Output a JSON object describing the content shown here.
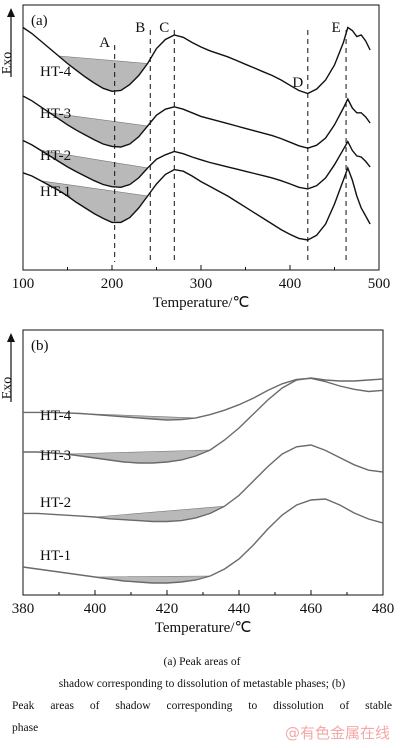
{
  "chart_data": [
    {
      "panel_label": "(a)",
      "type": "line",
      "xlabel": "Temperature/℃",
      "ylabel": "Exo",
      "xlim": [
        100,
        500
      ],
      "xticks": [
        100,
        200,
        300,
        400,
        500
      ],
      "grid": false,
      "legend": "none",
      "series": [
        {
          "name": "HT-4",
          "x": [
            100,
            110,
            120,
            130,
            140,
            150,
            160,
            170,
            180,
            190,
            200,
            210,
            220,
            230,
            240,
            250,
            260,
            270,
            280,
            290,
            300,
            310,
            320,
            330,
            340,
            350,
            360,
            370,
            380,
            390,
            400,
            410,
            420,
            430,
            440,
            450,
            460,
            465,
            470,
            475,
            480,
            485,
            490
          ],
          "y": [
            0.9,
            0.82,
            0.72,
            0.62,
            0.52,
            0.42,
            0.33,
            0.24,
            0.16,
            0.09,
            0.05,
            0.06,
            0.14,
            0.26,
            0.42,
            0.62,
            0.74,
            0.8,
            0.77,
            0.7,
            0.64,
            0.59,
            0.55,
            0.51,
            0.46,
            0.41,
            0.36,
            0.31,
            0.26,
            0.2,
            0.13,
            0.06,
            0.02,
            0.08,
            0.2,
            0.4,
            0.7,
            0.9,
            0.86,
            0.78,
            0.8,
            0.72,
            0.6
          ]
        },
        {
          "name": "HT-3",
          "x": [
            100,
            110,
            120,
            130,
            140,
            150,
            160,
            170,
            180,
            190,
            200,
            210,
            220,
            230,
            240,
            250,
            260,
            270,
            280,
            290,
            300,
            310,
            320,
            330,
            340,
            350,
            360,
            370,
            380,
            390,
            400,
            410,
            420,
            430,
            440,
            450,
            460,
            465,
            470,
            475,
            480,
            485,
            490
          ],
          "y": [
            0.9,
            0.82,
            0.72,
            0.62,
            0.52,
            0.42,
            0.33,
            0.25,
            0.17,
            0.1,
            0.06,
            0.05,
            0.1,
            0.22,
            0.4,
            0.58,
            0.68,
            0.72,
            0.68,
            0.62,
            0.56,
            0.52,
            0.48,
            0.44,
            0.4,
            0.36,
            0.32,
            0.28,
            0.24,
            0.19,
            0.13,
            0.07,
            0.03,
            0.08,
            0.2,
            0.42,
            0.7,
            0.85,
            0.7,
            0.62,
            0.62,
            0.55,
            0.45
          ]
        },
        {
          "name": "HT-2",
          "x": [
            100,
            110,
            120,
            130,
            140,
            150,
            160,
            170,
            180,
            190,
            200,
            210,
            220,
            230,
            240,
            250,
            260,
            270,
            280,
            290,
            300,
            310,
            320,
            330,
            340,
            350,
            360,
            370,
            380,
            390,
            400,
            410,
            420,
            430,
            440,
            450,
            460,
            465,
            470,
            475,
            480,
            485,
            490
          ],
          "y": [
            0.9,
            0.82,
            0.72,
            0.62,
            0.52,
            0.42,
            0.33,
            0.25,
            0.17,
            0.1,
            0.06,
            0.05,
            0.1,
            0.22,
            0.4,
            0.56,
            0.64,
            0.7,
            0.66,
            0.6,
            0.55,
            0.5,
            0.46,
            0.42,
            0.38,
            0.34,
            0.3,
            0.26,
            0.22,
            0.17,
            0.11,
            0.05,
            0.02,
            0.08,
            0.22,
            0.46,
            0.74,
            0.88,
            0.72,
            0.62,
            0.6,
            0.52,
            0.42
          ]
        },
        {
          "name": "HT-1",
          "x": [
            100,
            110,
            120,
            130,
            140,
            150,
            160,
            170,
            180,
            190,
            200,
            210,
            220,
            230,
            240,
            250,
            260,
            270,
            280,
            290,
            300,
            310,
            320,
            330,
            340,
            350,
            360,
            370,
            380,
            390,
            400,
            410,
            420,
            430,
            440,
            450,
            460,
            465,
            470,
            475,
            480,
            485,
            490
          ],
          "y": [
            0.84,
            0.8,
            0.74,
            0.68,
            0.62,
            0.55,
            0.47,
            0.4,
            0.33,
            0.27,
            0.22,
            0.22,
            0.28,
            0.4,
            0.55,
            0.7,
            0.82,
            0.88,
            0.86,
            0.8,
            0.73,
            0.67,
            0.61,
            0.55,
            0.48,
            0.41,
            0.34,
            0.27,
            0.2,
            0.13,
            0.07,
            0.02,
            0.0,
            0.06,
            0.2,
            0.45,
            0.75,
            0.9,
            0.75,
            0.55,
            0.4,
            0.3,
            0.2
          ]
        }
      ],
      "annotations": [
        {
          "label": "A",
          "x": 203
        },
        {
          "label": "B",
          "x": 243
        },
        {
          "label": "C",
          "x": 270
        },
        {
          "label": "D",
          "x": 420
        },
        {
          "label": "E",
          "x": 463
        }
      ]
    },
    {
      "panel_label": "(b)",
      "type": "line",
      "xlabel": "Temperature/℃",
      "ylabel": "Exo",
      "xlim": [
        380,
        480
      ],
      "xticks": [
        380,
        400,
        420,
        440,
        460,
        480
      ],
      "grid": false,
      "legend": "none",
      "series": [
        {
          "name": "HT-4",
          "x": [
            380,
            384,
            388,
            392,
            396,
            400,
            404,
            408,
            412,
            416,
            420,
            424,
            428,
            432,
            436,
            440,
            444,
            448,
            452,
            456,
            460,
            464,
            468,
            472,
            476,
            480
          ],
          "y": [
            0.32,
            0.32,
            0.32,
            0.31,
            0.3,
            0.28,
            0.26,
            0.24,
            0.22,
            0.2,
            0.18,
            0.19,
            0.22,
            0.28,
            0.36,
            0.46,
            0.58,
            0.72,
            0.84,
            0.92,
            0.94,
            0.88,
            0.8,
            0.74,
            0.7,
            0.72
          ]
        },
        {
          "name": "HT-3",
          "x": [
            380,
            384,
            388,
            392,
            396,
            400,
            404,
            408,
            412,
            416,
            420,
            424,
            428,
            432,
            436,
            440,
            444,
            448,
            452,
            456,
            460,
            464,
            468,
            472,
            476,
            480
          ],
          "y": [
            0.28,
            0.28,
            0.27,
            0.26,
            0.24,
            0.22,
            0.2,
            0.18,
            0.17,
            0.17,
            0.18,
            0.2,
            0.24,
            0.3,
            0.4,
            0.52,
            0.66,
            0.8,
            0.92,
            1.0,
            1.02,
            1.0,
            0.99,
            0.99,
            1.0,
            1.01
          ]
        },
        {
          "name": "HT-2",
          "x": [
            380,
            384,
            388,
            392,
            396,
            400,
            404,
            408,
            412,
            416,
            420,
            424,
            428,
            432,
            436,
            440,
            444,
            448,
            452,
            456,
            460,
            464,
            468,
            472,
            476,
            480
          ],
          "y": [
            0.24,
            0.24,
            0.23,
            0.22,
            0.21,
            0.2,
            0.18,
            0.17,
            0.16,
            0.15,
            0.15,
            0.16,
            0.19,
            0.24,
            0.32,
            0.44,
            0.6,
            0.76,
            0.9,
            0.98,
            1.0,
            0.94,
            0.86,
            0.78,
            0.72,
            0.7
          ]
        },
        {
          "name": "HT-1",
          "x": [
            380,
            384,
            388,
            392,
            396,
            400,
            404,
            408,
            412,
            416,
            420,
            424,
            428,
            432,
            436,
            440,
            444,
            448,
            452,
            456,
            460,
            464,
            468,
            472,
            476,
            480
          ],
          "y": [
            0.28,
            0.26,
            0.24,
            0.22,
            0.2,
            0.18,
            0.16,
            0.14,
            0.13,
            0.12,
            0.12,
            0.13,
            0.15,
            0.19,
            0.26,
            0.36,
            0.5,
            0.66,
            0.8,
            0.9,
            0.95,
            0.96,
            0.9,
            0.82,
            0.76,
            0.72
          ]
        }
      ]
    }
  ],
  "caption": {
    "line1": "(a) Peak areas of",
    "line2": "shadow corresponding to dissolution of metastable phases; (b)",
    "line3": "Peak areas of shadow corresponding to dissolution of stable",
    "line4": "phase"
  },
  "watermark": "@有色金属在线",
  "colors": {
    "curve_a": "#111111",
    "curve_b": "#6a6a6a",
    "shade": "#b9b9b9",
    "axis": "#111111"
  }
}
